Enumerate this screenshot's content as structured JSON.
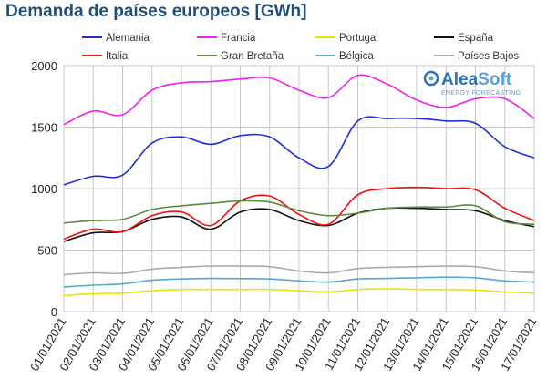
{
  "chart_data": {
    "type": "line",
    "title": "Demanda de países europeos [GWh]",
    "xlabel": "",
    "ylabel": "",
    "ylim": [
      0,
      2000
    ],
    "yticks": [
      0,
      500,
      1000,
      1500,
      2000
    ],
    "grid": true,
    "legend_position": "top",
    "categories": [
      "01/01/2021",
      "02/01/2021",
      "03/01/2021",
      "04/01/2021",
      "05/01/2021",
      "06/01/2021",
      "07/01/2021",
      "08/01/2021",
      "09/01/2021",
      "10/01/2021",
      "11/01/2021",
      "12/01/2021",
      "13/01/2021",
      "14/01/2021",
      "15/01/2021",
      "16/01/2021",
      "17/01/2021"
    ],
    "series": [
      {
        "name": "Alemania",
        "color": "#1f2fd6",
        "values": [
          1030,
          1100,
          1110,
          1370,
          1420,
          1360,
          1430,
          1420,
          1250,
          1180,
          1550,
          1570,
          1570,
          1550,
          1530,
          1340,
          1250
        ]
      },
      {
        "name": "Francia",
        "color": "#ee22ee",
        "values": [
          1520,
          1630,
          1600,
          1800,
          1860,
          1870,
          1890,
          1900,
          1800,
          1740,
          1920,
          1850,
          1720,
          1660,
          1730,
          1730,
          1570
        ]
      },
      {
        "name": "Portugal",
        "color": "#e6e600",
        "values": [
          130,
          145,
          150,
          170,
          180,
          180,
          180,
          180,
          170,
          160,
          180,
          185,
          180,
          180,
          175,
          160,
          150
        ]
      },
      {
        "name": "España",
        "color": "#111111",
        "values": [
          570,
          640,
          650,
          750,
          770,
          670,
          810,
          830,
          740,
          700,
          800,
          840,
          840,
          830,
          820,
          740,
          690
        ]
      },
      {
        "name": "Italia",
        "color": "#ee1111",
        "values": [
          590,
          670,
          650,
          780,
          810,
          700,
          900,
          940,
          790,
          710,
          950,
          1000,
          1010,
          1000,
          990,
          840,
          740
        ]
      },
      {
        "name": "Gran Bretaña",
        "color": "#5a8a3a",
        "values": [
          720,
          740,
          750,
          830,
          860,
          880,
          900,
          890,
          820,
          780,
          800,
          840,
          850,
          850,
          860,
          730,
          710
        ]
      },
      {
        "name": "Bélgica",
        "color": "#55aacc",
        "values": [
          200,
          215,
          225,
          255,
          265,
          270,
          268,
          265,
          250,
          240,
          265,
          270,
          275,
          280,
          275,
          250,
          240
        ]
      },
      {
        "name": "Países Bajos",
        "color": "#aaaaaa",
        "values": [
          300,
          315,
          310,
          345,
          360,
          370,
          370,
          365,
          330,
          315,
          350,
          360,
          365,
          370,
          365,
          330,
          315
        ]
      }
    ]
  },
  "logo": {
    "main_a": "Alea",
    "main_b": "Soft",
    "sub": "ENERGY FORECASTING",
    "color_a": "#2d6fb8",
    "color_b": "#5aa0d8"
  }
}
